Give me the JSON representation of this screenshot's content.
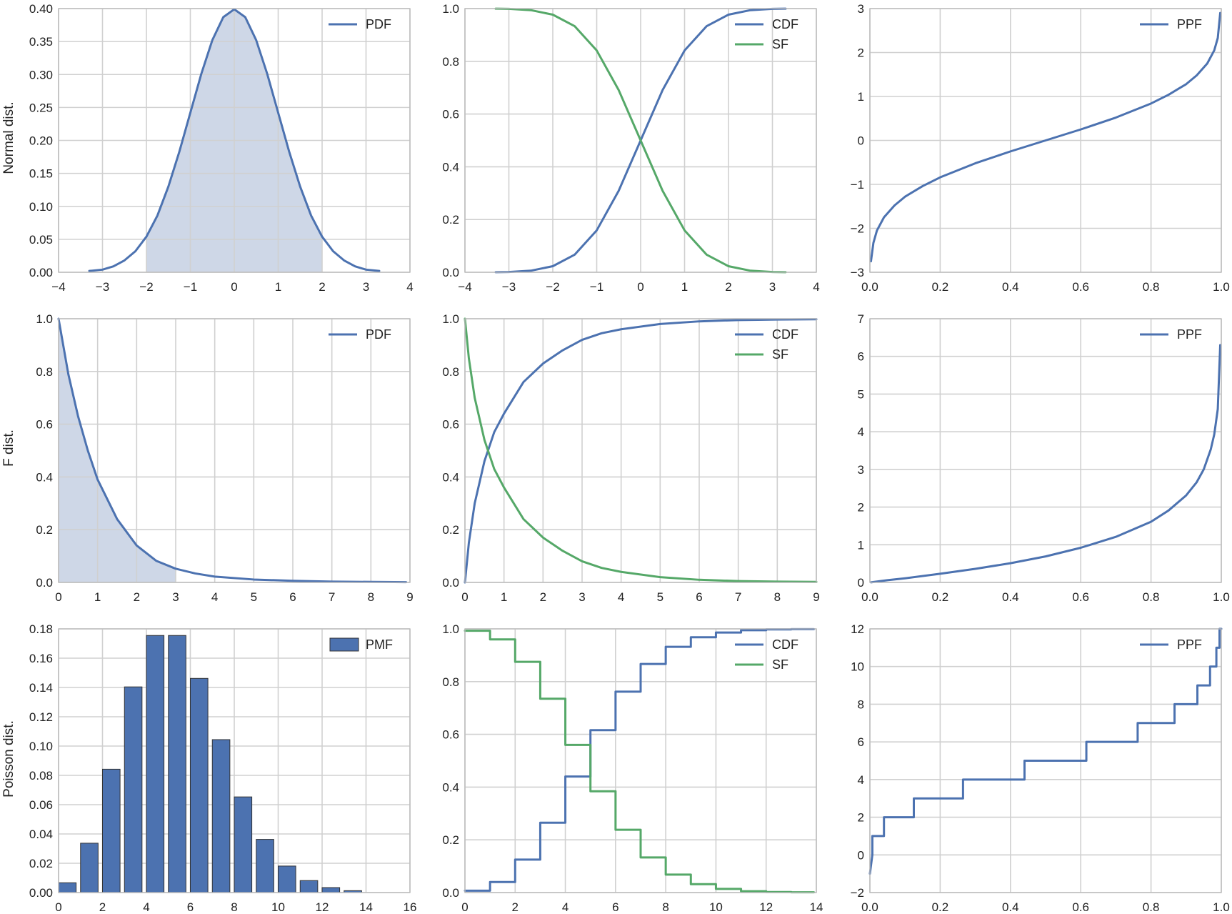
{
  "colors": {
    "blue": "#4c72b0",
    "green": "#55a868",
    "fill": "#c5d0e3",
    "grid": "#d0d0d0",
    "axis": "#bbbbbb"
  },
  "row_labels": [
    "Normal dist.",
    "F dist.",
    "Poisson dist."
  ],
  "chart_data": [
    {
      "id": "normal-pdf",
      "type": "area",
      "row": 0,
      "col": 0,
      "xlim": [
        -4,
        4
      ],
      "ylim": [
        0,
        0.4
      ],
      "xticks": [
        -4,
        -3,
        -2,
        -1,
        0,
        1,
        2,
        3,
        4
      ],
      "yticks": [
        0,
        0.05,
        0.1,
        0.15,
        0.2,
        0.25,
        0.3,
        0.35,
        0.4
      ],
      "xtick_labels": [
        "−4",
        "−3",
        "−2",
        "−1",
        "0",
        "1",
        "2",
        "3",
        "4"
      ],
      "ytick_labels": [
        "0.00",
        "0.05",
        "0.10",
        "0.15",
        "0.20",
        "0.25",
        "0.30",
        "0.35",
        "0.40"
      ],
      "grid": true,
      "legend": "top-right",
      "series": [
        {
          "name": "PDF",
          "color": "#4c72b0",
          "x": [
            -3.3,
            -3,
            -2.75,
            -2.5,
            -2.25,
            -2,
            -1.75,
            -1.5,
            -1.25,
            -1,
            -0.75,
            -0.5,
            -0.25,
            0,
            0.25,
            0.5,
            0.75,
            1,
            1.25,
            1.5,
            1.75,
            2,
            2.25,
            2.5,
            2.75,
            3,
            3.3
          ],
          "y": [
            0.002,
            0.004,
            0.009,
            0.018,
            0.032,
            0.054,
            0.086,
            0.13,
            0.183,
            0.242,
            0.301,
            0.352,
            0.387,
            0.399,
            0.387,
            0.352,
            0.301,
            0.242,
            0.183,
            0.13,
            0.086,
            0.054,
            0.032,
            0.018,
            0.009,
            0.004,
            0.002
          ]
        }
      ],
      "shaded_x_range": [
        -2,
        2
      ]
    },
    {
      "id": "normal-cdf",
      "type": "line",
      "row": 0,
      "col": 1,
      "xlim": [
        -4,
        4
      ],
      "ylim": [
        0,
        1
      ],
      "xticks": [
        -4,
        -3,
        -2,
        -1,
        0,
        1,
        2,
        3,
        4
      ],
      "yticks": [
        0,
        0.2,
        0.4,
        0.6,
        0.8,
        1
      ],
      "xtick_labels": [
        "−4",
        "−3",
        "−2",
        "−1",
        "0",
        "1",
        "2",
        "3",
        "4"
      ],
      "ytick_labels": [
        "0.0",
        "0.2",
        "0.4",
        "0.6",
        "0.8",
        "1.0"
      ],
      "grid": true,
      "legend": "top-right",
      "series": [
        {
          "name": "CDF",
          "color": "#4c72b0",
          "x": [
            -3.3,
            -3,
            -2.5,
            -2,
            -1.5,
            -1,
            -0.5,
            0,
            0.5,
            1,
            1.5,
            2,
            2.5,
            3,
            3.3
          ],
          "y": [
            0.0005,
            0.001,
            0.006,
            0.023,
            0.067,
            0.159,
            0.309,
            0.5,
            0.691,
            0.841,
            0.933,
            0.977,
            0.994,
            0.999,
            0.9995
          ]
        },
        {
          "name": "SF",
          "color": "#55a868",
          "x": [
            -3.3,
            -3,
            -2.5,
            -2,
            -1.5,
            -1,
            -0.5,
            0,
            0.5,
            1,
            1.5,
            2,
            2.5,
            3,
            3.3
          ],
          "y": [
            0.9995,
            0.999,
            0.994,
            0.977,
            0.933,
            0.841,
            0.691,
            0.5,
            0.309,
            0.159,
            0.067,
            0.023,
            0.006,
            0.001,
            0.0005
          ]
        }
      ]
    },
    {
      "id": "normal-ppf",
      "type": "line",
      "row": 0,
      "col": 2,
      "xlim": [
        0,
        1
      ],
      "ylim": [
        -3,
        3
      ],
      "xticks": [
        0,
        0.2,
        0.4,
        0.6,
        0.8,
        1
      ],
      "yticks": [
        -3,
        -2,
        -1,
        0,
        1,
        2,
        3
      ],
      "xtick_labels": [
        "0.0",
        "0.2",
        "0.4",
        "0.6",
        "0.8",
        "1.0"
      ],
      "ytick_labels": [
        "−3",
        "−2",
        "−1",
        "0",
        "1",
        "2",
        "3"
      ],
      "grid": true,
      "legend": "top-right",
      "series": [
        {
          "name": "PPF",
          "color": "#4c72b0",
          "x": [
            0.003,
            0.01,
            0.02,
            0.04,
            0.07,
            0.1,
            0.15,
            0.2,
            0.3,
            0.4,
            0.5,
            0.6,
            0.7,
            0.8,
            0.85,
            0.9,
            0.93,
            0.96,
            0.98,
            0.99,
            0.997
          ],
          "y": [
            -2.75,
            -2.33,
            -2.05,
            -1.75,
            -1.48,
            -1.28,
            -1.04,
            -0.84,
            -0.52,
            -0.25,
            0,
            0.25,
            0.52,
            0.84,
            1.04,
            1.28,
            1.48,
            1.75,
            2.05,
            2.33,
            2.9
          ]
        }
      ]
    },
    {
      "id": "f-pdf",
      "type": "area",
      "row": 1,
      "col": 0,
      "xlim": [
        0,
        9
      ],
      "ylim": [
        0,
        1
      ],
      "xticks": [
        0,
        1,
        2,
        3,
        4,
        5,
        6,
        7,
        8,
        9
      ],
      "yticks": [
        0,
        0.2,
        0.4,
        0.6,
        0.8,
        1
      ],
      "xtick_labels": [
        "0",
        "1",
        "2",
        "3",
        "4",
        "5",
        "6",
        "7",
        "8",
        "9"
      ],
      "ytick_labels": [
        "0.0",
        "0.2",
        "0.4",
        "0.6",
        "0.8",
        "1.0"
      ],
      "grid": true,
      "legend": "top-right",
      "series": [
        {
          "name": "PDF",
          "color": "#4c72b0",
          "x": [
            0,
            0.25,
            0.5,
            0.75,
            1,
            1.5,
            2,
            2.5,
            3,
            3.5,
            4,
            5,
            6,
            7,
            8,
            8.9
          ],
          "y": [
            1,
            0.79,
            0.63,
            0.5,
            0.39,
            0.24,
            0.14,
            0.082,
            0.052,
            0.034,
            0.022,
            0.011,
            0.006,
            0.003,
            0.002,
            0.001
          ]
        }
      ],
      "shaded_x_range": [
        0,
        3
      ]
    },
    {
      "id": "f-cdf",
      "type": "line",
      "row": 1,
      "col": 1,
      "xlim": [
        0,
        9
      ],
      "ylim": [
        0,
        1
      ],
      "xticks": [
        0,
        1,
        2,
        3,
        4,
        5,
        6,
        7,
        8,
        9
      ],
      "yticks": [
        0,
        0.2,
        0.4,
        0.6,
        0.8,
        1
      ],
      "xtick_labels": [
        "0",
        "1",
        "2",
        "3",
        "4",
        "5",
        "6",
        "7",
        "8",
        "9"
      ],
      "ytick_labels": [
        "0.0",
        "0.2",
        "0.4",
        "0.6",
        "0.8",
        "1.0"
      ],
      "grid": true,
      "legend": "top-right",
      "series": [
        {
          "name": "CDF",
          "color": "#4c72b0",
          "x": [
            0,
            0.1,
            0.25,
            0.5,
            0.75,
            1,
            1.5,
            2,
            2.5,
            3,
            3.5,
            4,
            5,
            6,
            7,
            8,
            9
          ],
          "y": [
            0,
            0.15,
            0.3,
            0.46,
            0.57,
            0.64,
            0.76,
            0.83,
            0.88,
            0.92,
            0.945,
            0.96,
            0.98,
            0.99,
            0.995,
            0.997,
            0.998
          ]
        },
        {
          "name": "SF",
          "color": "#55a868",
          "x": [
            0,
            0.1,
            0.25,
            0.5,
            0.75,
            1,
            1.5,
            2,
            2.5,
            3,
            3.5,
            4,
            5,
            6,
            7,
            8,
            9
          ],
          "y": [
            1,
            0.85,
            0.7,
            0.54,
            0.43,
            0.36,
            0.24,
            0.17,
            0.12,
            0.08,
            0.055,
            0.04,
            0.02,
            0.01,
            0.005,
            0.003,
            0.002
          ]
        }
      ]
    },
    {
      "id": "f-ppf",
      "type": "line",
      "row": 1,
      "col": 2,
      "xlim": [
        0,
        1
      ],
      "ylim": [
        0,
        7
      ],
      "xticks": [
        0,
        0.2,
        0.4,
        0.6,
        0.8,
        1
      ],
      "yticks": [
        0,
        1,
        2,
        3,
        4,
        5,
        6,
        7
      ],
      "xtick_labels": [
        "0.0",
        "0.2",
        "0.4",
        "0.6",
        "0.8",
        "1.0"
      ],
      "ytick_labels": [
        "0",
        "1",
        "2",
        "3",
        "4",
        "5",
        "6",
        "7"
      ],
      "grid": true,
      "legend": "top-right",
      "series": [
        {
          "name": "PPF",
          "color": "#4c72b0",
          "x": [
            0.003,
            0.05,
            0.1,
            0.2,
            0.3,
            0.4,
            0.5,
            0.6,
            0.7,
            0.8,
            0.85,
            0.9,
            0.93,
            0.95,
            0.97,
            0.98,
            0.99,
            0.997
          ],
          "y": [
            0.003,
            0.06,
            0.11,
            0.23,
            0.36,
            0.51,
            0.69,
            0.92,
            1.21,
            1.61,
            1.91,
            2.31,
            2.66,
            3.0,
            3.53,
            3.93,
            4.6,
            6.3
          ]
        }
      ]
    },
    {
      "id": "poisson-pmf",
      "type": "bar",
      "row": 2,
      "col": 0,
      "xlim": [
        0,
        16
      ],
      "ylim": [
        0,
        0.18
      ],
      "xticks": [
        0,
        2,
        4,
        6,
        8,
        10,
        12,
        14,
        16
      ],
      "yticks": [
        0,
        0.02,
        0.04,
        0.06,
        0.08,
        0.1,
        0.12,
        0.14,
        0.16,
        0.18
      ],
      "xtick_labels": [
        "0",
        "2",
        "4",
        "6",
        "8",
        "10",
        "12",
        "14",
        "16"
      ],
      "ytick_labels": [
        "0.00",
        "0.02",
        "0.04",
        "0.06",
        "0.08",
        "0.10",
        "0.12",
        "0.14",
        "0.16",
        "0.18"
      ],
      "grid": true,
      "legend": "top-right",
      "bar_width": 0.8,
      "series": [
        {
          "name": "PMF",
          "color": "#4c72b0",
          "x": [
            0,
            1,
            2,
            3,
            4,
            5,
            6,
            7,
            8,
            9,
            10,
            11,
            12,
            13
          ],
          "y": [
            0.0067,
            0.0337,
            0.0842,
            0.1404,
            0.1755,
            0.1755,
            0.1462,
            0.1044,
            0.0653,
            0.0363,
            0.0181,
            0.0082,
            0.0034,
            0.0013
          ]
        }
      ]
    },
    {
      "id": "poisson-cdf",
      "type": "line",
      "row": 2,
      "col": 1,
      "xlim": [
        0,
        14
      ],
      "ylim": [
        0,
        1
      ],
      "xticks": [
        0,
        2,
        4,
        6,
        8,
        10,
        12,
        14
      ],
      "yticks": [
        0,
        0.2,
        0.4,
        0.6,
        0.8,
        1
      ],
      "xtick_labels": [
        "0",
        "2",
        "4",
        "6",
        "8",
        "10",
        "12",
        "14"
      ],
      "ytick_labels": [
        "0.0",
        "0.2",
        "0.4",
        "0.6",
        "0.8",
        "1.0"
      ],
      "grid": true,
      "legend": "top-right",
      "step": true,
      "step_x_end": 13.9,
      "series": [
        {
          "name": "CDF",
          "color": "#4c72b0",
          "x": [
            0,
            1,
            2,
            3,
            4,
            5,
            6,
            7,
            8,
            9,
            10,
            11,
            12,
            13
          ],
          "y": [
            0.007,
            0.04,
            0.125,
            0.265,
            0.44,
            0.616,
            0.762,
            0.867,
            0.932,
            0.968,
            0.986,
            0.995,
            0.998,
            0.999
          ]
        },
        {
          "name": "SF",
          "color": "#55a868",
          "x": [
            0,
            1,
            2,
            3,
            4,
            5,
            6,
            7,
            8,
            9,
            10,
            11,
            12,
            13
          ],
          "y": [
            0.993,
            0.96,
            0.875,
            0.735,
            0.56,
            0.384,
            0.238,
            0.133,
            0.068,
            0.032,
            0.014,
            0.005,
            0.002,
            0.001
          ]
        }
      ]
    },
    {
      "id": "poisson-ppf",
      "type": "line",
      "row": 2,
      "col": 2,
      "xlim": [
        0,
        1
      ],
      "ylim": [
        -2,
        12
      ],
      "xticks": [
        0,
        0.2,
        0.4,
        0.6,
        0.8,
        1
      ],
      "yticks": [
        -2,
        0,
        2,
        4,
        6,
        8,
        10,
        12
      ],
      "xtick_labels": [
        "0.0",
        "0.2",
        "0.4",
        "0.6",
        "0.8",
        "1.0"
      ],
      "ytick_labels": [
        "−2",
        "0",
        "2",
        "4",
        "6",
        "8",
        "10",
        "12"
      ],
      "grid": true,
      "legend": "top-right",
      "series": [
        {
          "name": "PPF",
          "color": "#4c72b0",
          "x": [
            0,
            0.007,
            0.007,
            0.04,
            0.04,
            0.125,
            0.125,
            0.265,
            0.265,
            0.44,
            0.44,
            0.616,
            0.616,
            0.762,
            0.762,
            0.867,
            0.867,
            0.932,
            0.932,
            0.968,
            0.968,
            0.986,
            0.986,
            0.995,
            0.995,
            1
          ],
          "y": [
            -1,
            0,
            1,
            1,
            2,
            2,
            3,
            3,
            4,
            4,
            5,
            5,
            6,
            6,
            7,
            7,
            8,
            8,
            9,
            9,
            10,
            10,
            11,
            11,
            12,
            12
          ]
        }
      ]
    }
  ]
}
